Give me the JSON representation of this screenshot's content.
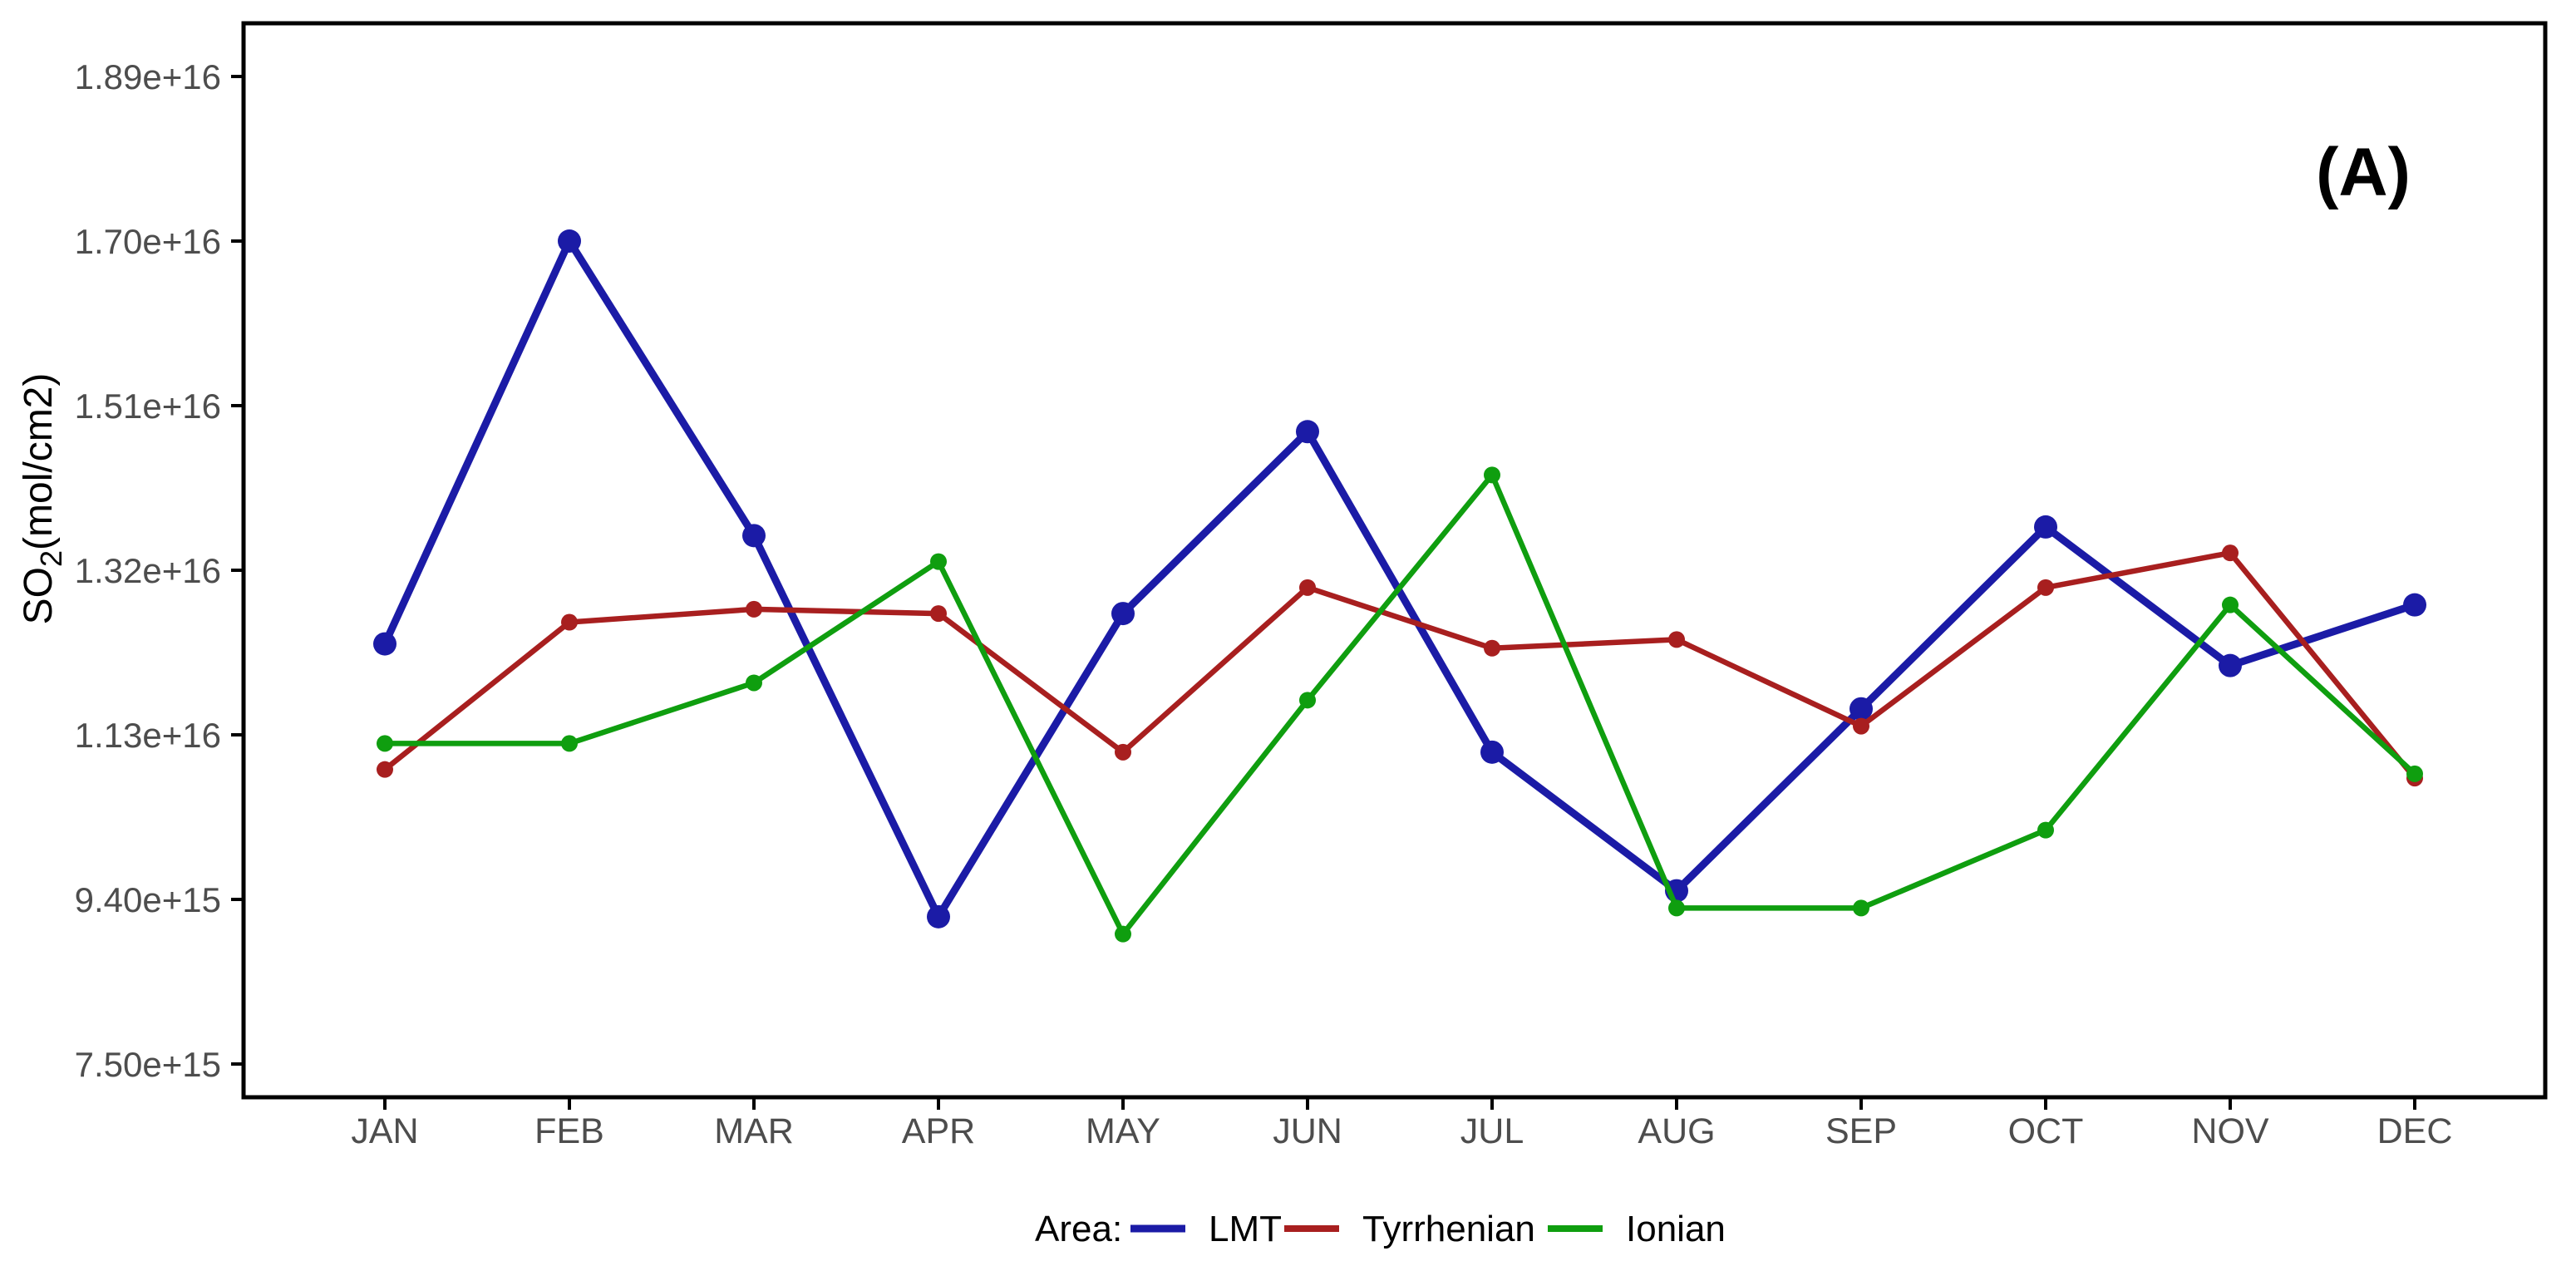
{
  "figure": {
    "panel_label": "(A)",
    "background": "#ffffff",
    "axis_color": "#000000",
    "tick_label_color": "#4d4d4d",
    "y_axis_title_pre": "SO",
    "y_axis_title_sub": "2",
    "y_axis_title_post": "(mol/cm2)",
    "legend_title": "Area:"
  },
  "chart_data": {
    "type": "line",
    "title": "",
    "xlabel": "",
    "ylabel": "SO2(mol/cm2)",
    "categories": [
      "JAN",
      "FEB",
      "MAR",
      "APR",
      "MAY",
      "JUN",
      "JUL",
      "AUG",
      "SEP",
      "OCT",
      "NOV",
      "DEC"
    ],
    "y_tick_labels": [
      "1.89e+16",
      "1.70e+16",
      "1.51e+16",
      "1.32e+16",
      "1.13e+16",
      "9.40e+15",
      "7.50e+15"
    ],
    "y_tick_values": [
      1.89e+16,
      1.7e+16,
      1.51e+16,
      1.32e+16,
      1.13e+16,
      9400000000000000.0,
      7500000000000000.0
    ],
    "ylim": [
      7100000000000000.0,
      1.95e+16
    ],
    "grid": "off",
    "legend_position": "bottom-center",
    "series": [
      {
        "name": "LMT",
        "color": "#1b1ba6",
        "linewidth": 9,
        "pointradius": 14,
        "values": [
          1.235e+16,
          1.7e+16,
          1.36e+16,
          9200000000000000.0,
          1.27e+16,
          1.48e+16,
          1.11e+16,
          9500000000000000.0,
          1.16e+16,
          1.37e+16,
          1.21e+16,
          1.28e+16
        ]
      },
      {
        "name": "Tyrrhenian",
        "color": "#a81f1f",
        "linewidth": 6.5,
        "pointradius": 10,
        "values": [
          1.09e+16,
          1.26e+16,
          1.275e+16,
          1.27e+16,
          1.11e+16,
          1.3e+16,
          1.23e+16,
          1.24e+16,
          1.14e+16,
          1.3e+16,
          1.34e+16,
          1.08e+16
        ]
      },
      {
        "name": "Ionian",
        "color": "#0f9e0f",
        "linewidth": 6.5,
        "pointradius": 10,
        "values": [
          1.12e+16,
          1.12e+16,
          1.19e+16,
          1.33e+16,
          9000000000000000.0,
          1.17e+16,
          1.43e+16,
          9300000000000000.0,
          9300000000000000.0,
          1.02e+16,
          1.28e+16,
          1.085e+16
        ]
      }
    ]
  }
}
